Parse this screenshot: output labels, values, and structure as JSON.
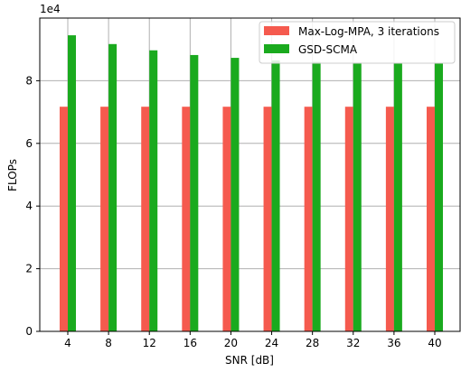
{
  "chart_data": {
    "type": "bar",
    "categories": [
      "4",
      "8",
      "12",
      "16",
      "20",
      "24",
      "28",
      "32",
      "36",
      "40"
    ],
    "series": [
      {
        "name": "Max-Log-MPA, 3 iterations",
        "color": "#f55a4e",
        "values": [
          71700,
          71700,
          71700,
          71700,
          71700,
          71700,
          71700,
          71700,
          71700,
          71700
        ]
      },
      {
        "name": "GSD-SCMA",
        "color": "#1aaa1e",
        "values": [
          94500,
          91700,
          89700,
          88200,
          87300,
          86500,
          86000,
          85800,
          85600,
          85500
        ]
      }
    ],
    "xlabel": "SNR [dB]",
    "ylabel": "FLOPs",
    "y_scale_label": "1e4",
    "y_scale": 10000,
    "ylim": [
      0,
      100000
    ],
    "yticks": [
      0,
      2,
      4,
      6,
      8
    ],
    "grid": true,
    "legend_position": "top-right"
  }
}
